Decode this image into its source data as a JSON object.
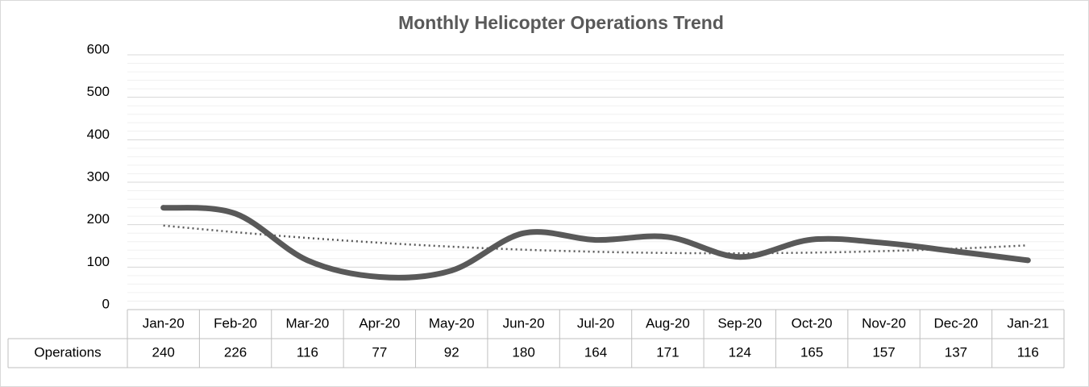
{
  "chart_data": {
    "type": "line",
    "title": "Monthly Helicopter Operations Trend",
    "categories": [
      "Jan-20",
      "Feb-20",
      "Mar-20",
      "Apr-20",
      "May-20",
      "Jun-20",
      "Jul-20",
      "Aug-20",
      "Sep-20",
      "Oct-20",
      "Nov-20",
      "Dec-20",
      "Jan-21"
    ],
    "series": [
      {
        "name": "Operations",
        "color": "#595959",
        "values": [
          240,
          226,
          116,
          77,
          92,
          180,
          164,
          171,
          124,
          165,
          157,
          137,
          116
        ]
      }
    ],
    "ylim": [
      0,
      600
    ],
    "yticks": [
      0,
      100,
      200,
      300,
      400,
      500,
      600
    ],
    "grid": true,
    "minor_grid_step": 20,
    "smooth": true,
    "trendline": {
      "type": "polynomial",
      "order": 2
    },
    "data_table": true
  }
}
